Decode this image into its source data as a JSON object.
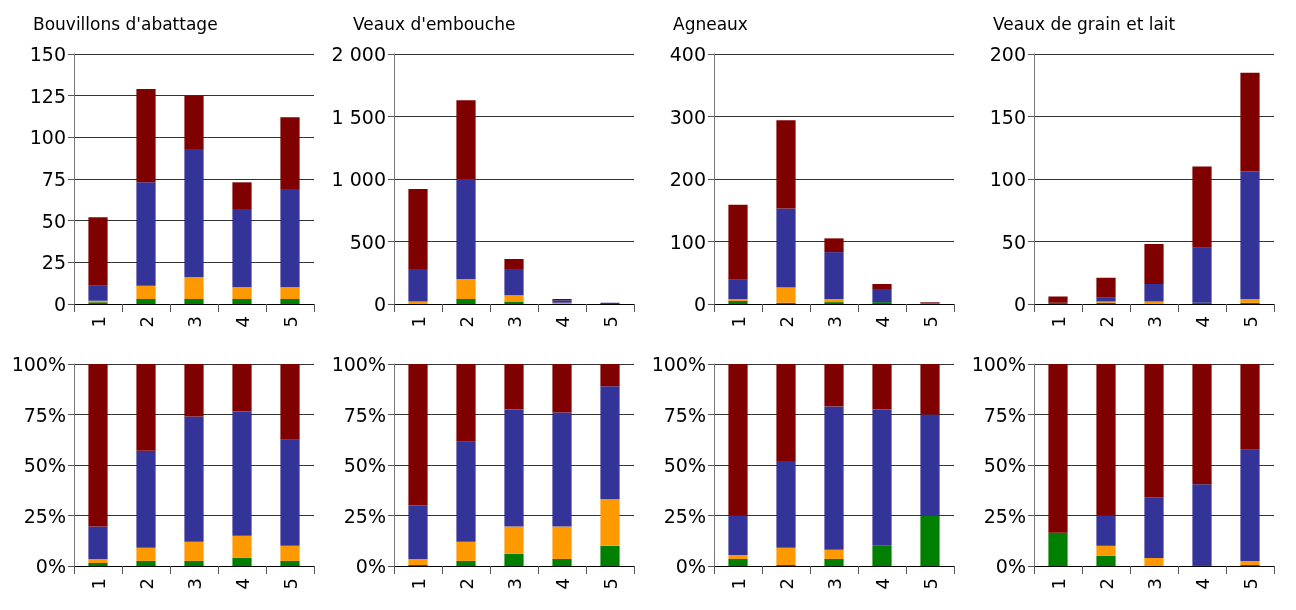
{
  "chart_data": [
    {
      "type": "bar",
      "title": "Bouvillons d'abattage",
      "stacked": true,
      "grid": "y",
      "categories": [
        "1",
        "2",
        "3",
        "4",
        "5"
      ],
      "ylim": [
        0,
        150
      ],
      "yticks": [
        0,
        25,
        50,
        75,
        100,
        125,
        150
      ],
      "series": [
        {
          "color": "#007f00",
          "values": [
            1,
            3,
            3,
            3,
            3
          ]
        },
        {
          "color": "#ff9900",
          "values": [
            1,
            8,
            13,
            7,
            7
          ]
        },
        {
          "color": "#333399",
          "values": [
            9,
            62,
            77,
            47,
            59
          ]
        },
        {
          "color": "#800000",
          "values": [
            41,
            56,
            32,
            16,
            43
          ]
        }
      ]
    },
    {
      "type": "bar",
      "title": "Veaux d'embouche",
      "stacked": true,
      "grid": "y",
      "categories": [
        "1",
        "2",
        "3",
        "4",
        "5"
      ],
      "ylim": [
        0,
        2000
      ],
      "yticks": [
        0,
        500,
        {
          "value": 1000,
          "label": "1 000"
        },
        {
          "value": 1500,
          "label": "1 500"
        },
        {
          "value": 2000,
          "label": "2 000"
        }
      ],
      "series": [
        {
          "color": "#007f00",
          "values": [
            0,
            40,
            20,
            0,
            0
          ]
        },
        {
          "color": "#ff9900",
          "values": [
            20,
            160,
            50,
            10,
            0
          ]
        },
        {
          "color": "#333399",
          "values": [
            260,
            800,
            210,
            20,
            10
          ]
        },
        {
          "color": "#800000",
          "values": [
            640,
            630,
            80,
            10,
            0
          ]
        }
      ]
    },
    {
      "type": "bar",
      "title": "Agneaux",
      "stacked": true,
      "grid": "y",
      "categories": [
        "1",
        "2",
        "3",
        "4",
        "5"
      ],
      "ylim": [
        0,
        400
      ],
      "yticks": [
        0,
        100,
        200,
        300,
        400
      ],
      "series": [
        {
          "color": "#007f00",
          "values": [
            5,
            2,
            3,
            3,
            1
          ]
        },
        {
          "color": "#ff9900",
          "values": [
            3,
            25,
            5,
            0,
            0
          ]
        },
        {
          "color": "#333399",
          "values": [
            31,
            126,
            75,
            21,
            1
          ]
        },
        {
          "color": "#800000",
          "values": [
            120,
            141,
            22,
            8,
            1
          ]
        }
      ]
    },
    {
      "type": "bar",
      "title": "Veaux de grain et lait",
      "stacked": true,
      "grid": "y",
      "categories": [
        "1",
        "2",
        "3",
        "4",
        "5"
      ],
      "ylim": [
        0,
        200
      ],
      "yticks": [
        0,
        50,
        100,
        150,
        200
      ],
      "series": [
        {
          "color": "#007f00",
          "values": [
            1,
            1,
            0,
            1,
            1
          ]
        },
        {
          "color": "#ff9900",
          "values": [
            0,
            1,
            2,
            0,
            3
          ]
        },
        {
          "color": "#333399",
          "values": [
            0,
            3,
            14,
            44,
            102
          ]
        },
        {
          "color": "#800000",
          "values": [
            5,
            16,
            32,
            65,
            79
          ]
        }
      ]
    },
    {
      "type": "bar",
      "stacked": true,
      "grid": "y",
      "categories": [
        "1",
        "2",
        "3",
        "4",
        "5"
      ],
      "ylim": [
        0,
        100
      ],
      "yticks": [
        {
          "value": 0,
          "label": "0%"
        },
        {
          "value": 25,
          "label": "25%"
        },
        {
          "value": 50,
          "label": "50%"
        },
        {
          "value": 75,
          "label": "75%"
        },
        {
          "value": 100,
          "label": "100%"
        }
      ],
      "series": [
        {
          "color": "#007f00",
          "values": [
            1.5,
            2.5,
            2.5,
            4,
            2.5
          ]
        },
        {
          "color": "#ff9900",
          "values": [
            2,
            6.5,
            9.5,
            11,
            7.5
          ]
        },
        {
          "color": "#333399",
          "values": [
            16,
            48,
            62,
            61.5,
            52.5
          ]
        },
        {
          "color": "#800000",
          "values": [
            80.5,
            43,
            26,
            23.5,
            37.5
          ]
        }
      ]
    },
    {
      "type": "bar",
      "stacked": true,
      "grid": "y",
      "categories": [
        "1",
        "2",
        "3",
        "4",
        "5"
      ],
      "ylim": [
        0,
        100
      ],
      "yticks": [
        {
          "value": 0,
          "label": "0%"
        },
        {
          "value": 25,
          "label": "25%"
        },
        {
          "value": 50,
          "label": "50%"
        },
        {
          "value": 75,
          "label": "75%"
        },
        {
          "value": 100,
          "label": "100%"
        }
      ],
      "series": [
        {
          "color": "#007f00",
          "values": [
            0.5,
            2.5,
            6,
            3.5,
            10
          ]
        },
        {
          "color": "#ff9900",
          "values": [
            3,
            9.5,
            13.5,
            16,
            23
          ]
        },
        {
          "color": "#333399",
          "values": [
            26.5,
            49.5,
            58,
            56.5,
            56
          ]
        },
        {
          "color": "#800000",
          "values": [
            70,
            38.5,
            22.5,
            24,
            11
          ]
        }
      ]
    },
    {
      "type": "bar",
      "stacked": true,
      "grid": "y",
      "categories": [
        "1",
        "2",
        "3",
        "4",
        "5"
      ],
      "ylim": [
        0,
        100
      ],
      "yticks": [
        {
          "value": 0,
          "label": "0%"
        },
        {
          "value": 25,
          "label": "25%"
        },
        {
          "value": 50,
          "label": "50%"
        },
        {
          "value": 75,
          "label": "75%"
        },
        {
          "value": 100,
          "label": "100%"
        }
      ],
      "series": [
        {
          "color": "#007f00",
          "values": [
            3.5,
            0.5,
            3.5,
            10,
            25
          ]
        },
        {
          "color": "#ff9900",
          "values": [
            2,
            8.5,
            4.5,
            0,
            0
          ]
        },
        {
          "color": "#333399",
          "values": [
            19.5,
            43,
            71,
            67.5,
            50
          ]
        },
        {
          "color": "#800000",
          "values": [
            75,
            48,
            21,
            22.5,
            25
          ]
        }
      ]
    },
    {
      "type": "bar",
      "stacked": true,
      "grid": "y",
      "categories": [
        "1",
        "2",
        "3",
        "4",
        "5"
      ],
      "ylim": [
        0,
        100
      ],
      "yticks": [
        {
          "value": 0,
          "label": "0%"
        },
        {
          "value": 25,
          "label": "25%"
        },
        {
          "value": 50,
          "label": "50%"
        },
        {
          "value": 75,
          "label": "75%"
        },
        {
          "value": 100,
          "label": "100%"
        }
      ],
      "series": [
        {
          "color": "#007f00",
          "values": [
            16.5,
            5,
            0,
            0.5,
            0.5
          ]
        },
        {
          "color": "#ff9900",
          "values": [
            0,
            5,
            4,
            0,
            2
          ]
        },
        {
          "color": "#333399",
          "values": [
            0,
            15,
            30,
            40,
            55
          ]
        },
        {
          "color": "#800000",
          "values": [
            83.5,
            75,
            66,
            59.5,
            42.5
          ]
        }
      ]
    }
  ]
}
